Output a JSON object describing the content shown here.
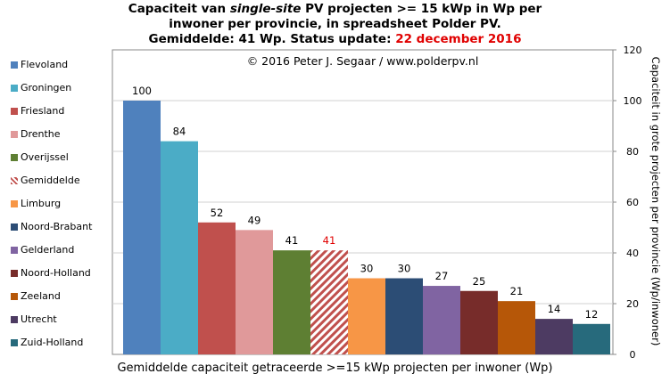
{
  "header": {
    "title_line1_pre": "Capaciteit van ",
    "title_line1_em": "single-site",
    "title_line1_post": " PV projecten >= 15 kWp in Wp per",
    "title_line2": "inwoner per provincie, in spreadsheet Polder PV.",
    "title_line3_pre": "Gemiddelde: 41 Wp. Status update: ",
    "title_line3_date": "22 december 2016"
  },
  "copyright": "© 2016 Peter J. Segaar / www.polderpv.nl",
  "colors": {
    "date_highlight": "#e00000",
    "average_label": "#e00000",
    "grid": "#d0d0d0"
  },
  "chart_data": {
    "type": "bar",
    "categories": [
      "Flevoland",
      "Groningen",
      "Friesland",
      "Drenthe",
      "Overijssel",
      "Gemiddelde",
      "Limburg",
      "Noord-Brabant",
      "Gelderland",
      "Noord-Holland",
      "Zeeland",
      "Utrecht",
      "Zuid-Holland"
    ],
    "values": [
      100,
      84,
      52,
      49,
      41,
      41,
      30,
      30,
      27,
      25,
      21,
      14,
      12
    ],
    "colors": [
      "#4f81bd",
      "#4bacc6",
      "#c0504d",
      "#e0999a",
      "#5e7f33",
      "#c0504d",
      "#f79646",
      "#2c4d75",
      "#8064a2",
      "#772c2a",
      "#b65708",
      "#4d3b62",
      "#276a7c"
    ],
    "hatched_category": "Gemiddelde",
    "title": "",
    "xlabel": "Gemiddelde capaciteit getraceerde >=15 kWp projecten per inwoner (Wp)",
    "ylabel": "Capaciteit in grote projecten per provincie (Wp/inwoner)",
    "ylim": [
      0,
      120
    ],
    "yticks": [
      0,
      20,
      40,
      60,
      80,
      100,
      120
    ],
    "y_axis_side": "right",
    "grid": true,
    "legend_position": "left"
  }
}
